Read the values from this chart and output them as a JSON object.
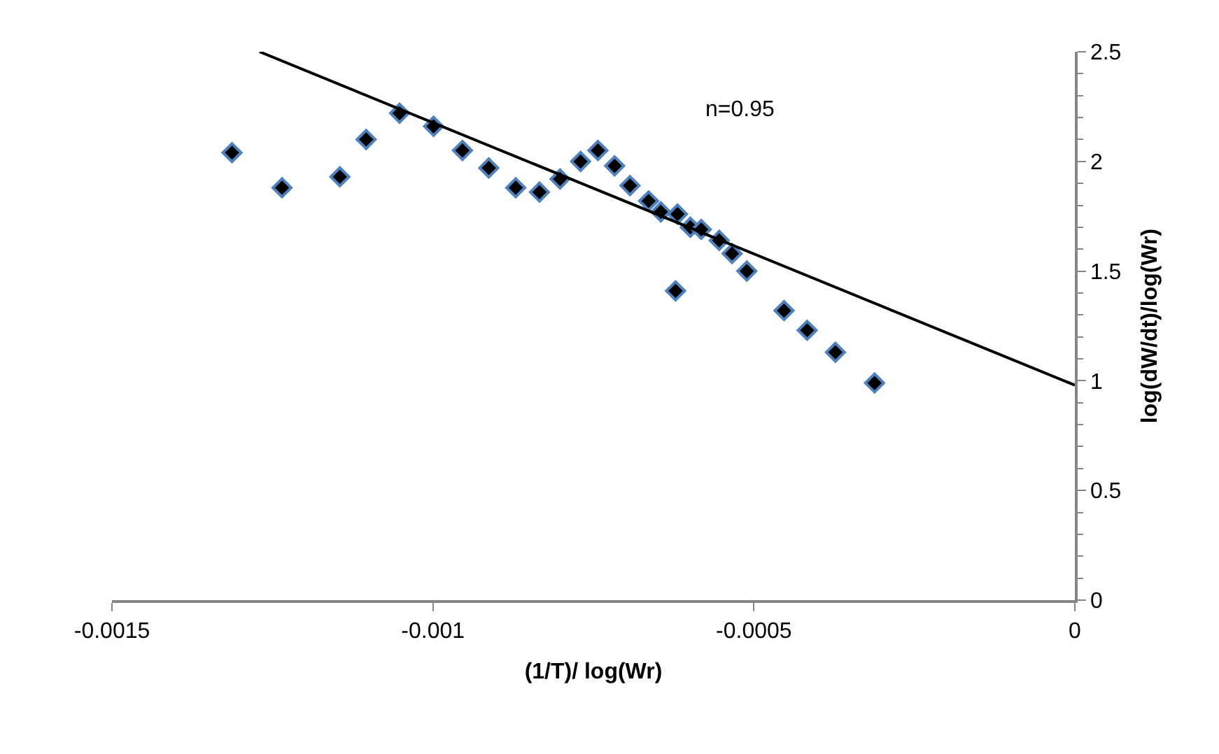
{
  "chart_data": {
    "type": "scatter",
    "xlabel": "(1/T)/ log(Wr)",
    "ylabel": "log(dW/dt)/log(Wr)",
    "xlim": [
      -0.0015,
      0
    ],
    "xticks": [
      -0.0015,
      -0.001,
      -0.0005,
      0
    ],
    "ylim": [
      0,
      2.5
    ],
    "yticks": [
      0,
      0.5,
      1,
      1.5,
      2,
      2.5
    ],
    "marker": "diamond",
    "annotations": [
      "n=0.95"
    ],
    "series": [
      {
        "color": "#000000",
        "x": [
          -0.001313,
          -0.001235,
          -0.001145,
          -0.001104,
          -0.001052,
          -0.000999,
          -0.000954,
          -0.000913,
          -0.000871,
          -0.000834,
          -0.000802,
          -0.00077,
          -0.000743,
          -0.000717,
          -0.000693,
          -0.000664,
          -0.000645,
          -0.000619,
          -0.000599,
          -0.000582,
          -0.000554,
          -0.000534,
          -0.000511,
          -0.000622,
          -0.000453,
          -0.000417,
          -0.000373,
          -0.000312
        ],
        "values": [
          2.04,
          1.88,
          1.93,
          2.1,
          2.22,
          2.16,
          2.05,
          1.97,
          1.88,
          1.86,
          1.92,
          2.0,
          2.05,
          1.98,
          1.89,
          1.82,
          1.77,
          1.76,
          1.7,
          1.69,
          1.64,
          1.58,
          1.5,
          1.41,
          1.32,
          1.23,
          1.13,
          0.99
        ]
      },
      {
        "type": "line",
        "color": "#000000",
        "marker": "none",
        "x": [
          -0.00127,
          0
        ],
        "values": [
          2.5,
          0.98
        ]
      }
    ]
  }
}
